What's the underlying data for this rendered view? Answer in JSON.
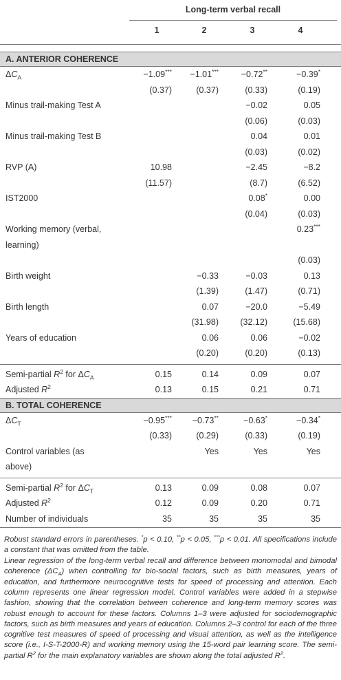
{
  "table": {
    "caption": "Long-term verbal recall",
    "columns": [
      "1",
      "2",
      "3",
      "4"
    ],
    "sections": [
      {
        "title": "A. ANTERIOR COHERENCE",
        "rows": [
          {
            "label": [
              [
                "Δ",
                {
                  "em": "C"
                },
                {
                  "sub": "A"
                }
              ]
            ],
            "values": [
              {
                "text": "−1.09",
                "sup": "***"
              },
              {
                "text": "−1.01",
                "sup": "***"
              },
              {
                "text": "−0.72",
                "sup": "**"
              },
              {
                "text": "−0.39",
                "sup": "*"
              }
            ],
            "se": [
              "(0.37)",
              "(0.37)",
              "(0.33)",
              "(0.19)"
            ]
          },
          {
            "label": [
              [
                "Minus trail-making Test A"
              ]
            ],
            "values": [
              null,
              null,
              "−0.02",
              "0.05"
            ],
            "se": [
              null,
              null,
              "(0.06)",
              "(0.03)"
            ]
          },
          {
            "label": [
              [
                "Minus trail-making Test B"
              ]
            ],
            "values": [
              null,
              null,
              "0.04",
              "0.01"
            ],
            "se": [
              null,
              null,
              "(0.03)",
              "(0.02)"
            ]
          },
          {
            "label": [
              [
                "RVP (A)"
              ]
            ],
            "values": [
              "10.98",
              null,
              "−2.45",
              "−8.2"
            ],
            "se": [
              "(11.57)",
              null,
              "(8.7)",
              "(6.52)"
            ]
          },
          {
            "label": [
              [
                "IST2000"
              ]
            ],
            "values": [
              null,
              null,
              {
                "text": "0.08",
                "sup": "*"
              },
              "0.00"
            ],
            "se": [
              null,
              null,
              "(0.04)",
              "(0.03)"
            ]
          },
          {
            "label": [
              [
                "Working memory (verbal,"
              ],
              [
                "learning)"
              ]
            ],
            "values": [
              null,
              null,
              null,
              {
                "text": "0.23",
                "sup": "***"
              }
            ],
            "se": [
              null,
              null,
              null,
              "(0.03)"
            ]
          },
          {
            "label": [
              [
                "Birth weight"
              ]
            ],
            "values": [
              null,
              "−0.33",
              "−0.03",
              "0.13"
            ],
            "se": [
              null,
              "(1.39)",
              "(1.47)",
              "(0.71)"
            ]
          },
          {
            "label": [
              [
                "Birth length"
              ]
            ],
            "values": [
              null,
              "0.07",
              "−20.0",
              "−5.49"
            ],
            "se": [
              null,
              "(31.98)",
              "(32.12)",
              "(15.68)"
            ]
          },
          {
            "label": [
              [
                "Years of education"
              ]
            ],
            "values": [
              null,
              "0.06",
              "0.06",
              "−0.02"
            ],
            "se": [
              null,
              "(0.20)",
              "(0.20)",
              "(0.13)"
            ]
          }
        ],
        "summary": [
          {
            "label": [
              [
                "Semi-partial ",
                {
                  "em": "R"
                },
                {
                  "sup": "2"
                },
                " for Δ",
                {
                  "em": "C"
                },
                {
                  "sub": "A"
                }
              ]
            ],
            "values": [
              "0.15",
              "0.14",
              "0.09",
              "0.07"
            ]
          },
          {
            "label": [
              [
                "Adjusted ",
                {
                  "em": "R"
                },
                {
                  "sup": "2"
                }
              ]
            ],
            "values": [
              "0.13",
              "0.15",
              "0.21",
              "0.71"
            ]
          }
        ]
      },
      {
        "title": "B. TOTAL COHERENCE",
        "rows": [
          {
            "label": [
              [
                "Δ",
                {
                  "em": "C"
                },
                {
                  "sub": "T"
                }
              ]
            ],
            "values": [
              {
                "text": "−0.95",
                "sup": "***"
              },
              {
                "text": "−0.73",
                "sup": "**"
              },
              {
                "text": "−0.63",
                "sup": "*"
              },
              {
                "text": "−0.34",
                "sup": "*"
              }
            ],
            "se": [
              "(0.33)",
              "(0.29)",
              "(0.33)",
              "(0.19)"
            ]
          },
          {
            "label": [
              [
                "Control variables (as"
              ],
              [
                "above)"
              ]
            ],
            "values": [
              null,
              "Yes",
              "Yes",
              "Yes"
            ]
          }
        ],
        "summary": [
          {
            "label": [
              [
                "Semi-partial ",
                {
                  "em": "R"
                },
                {
                  "sup": "2"
                },
                " for Δ",
                {
                  "em": "C"
                },
                {
                  "sub": "T"
                }
              ]
            ],
            "values": [
              "0.13",
              "0.09",
              "0.08",
              "0.07"
            ]
          },
          {
            "label": [
              [
                "Adjusted ",
                {
                  "em": "R"
                },
                {
                  "sup": "2"
                }
              ]
            ],
            "values": [
              "0.12",
              "0.09",
              "0.20",
              "0.71"
            ]
          },
          {
            "label": [
              [
                "Number of individuals"
              ]
            ],
            "values": [
              "35",
              "35",
              "35",
              "35"
            ]
          }
        ]
      }
    ]
  },
  "footnotes": [
    [
      "Robust standard errors in parentheses. ",
      {
        "sup": "*"
      },
      "p < 0.10, ",
      {
        "sup": "**"
      },
      "p < 0.05, ",
      {
        "sup": "***"
      },
      "p < 0.01. All specifications include a constant that was omitted from the table."
    ],
    [
      "Linear regression of the long-term verbal recall and difference between monomodal and bimodal coherence (Δ",
      {
        "em": "C"
      },
      {
        "sub": "A"
      },
      ") when controlling for bio-social factors, such as birth measures, years of education, and furthermore neurocognitive tests for speed of processing and attention. Each column represents one linear regression model. Control variables were added in a stepwise fashion, showing that the correlation between coherence and long-term memory scores was robust enough to account for these factors. Columns 1–3 were adjusted for sociodemographic factors, such as birth measures and years of education. Columns 2–3 control for each of the three cognitive test measures of speed of processing and visual attention, as well as the intelligence score (i.e., I-S-T-2000-R) and working memory using the 15-word pair learning score. The semi-partial ",
      {
        "em": "R"
      },
      {
        "sup": "2"
      },
      " for the main explanatory variables are shown along the total adjusted ",
      {
        "em": "R"
      },
      {
        "sup": "2"
      },
      "."
    ]
  ]
}
